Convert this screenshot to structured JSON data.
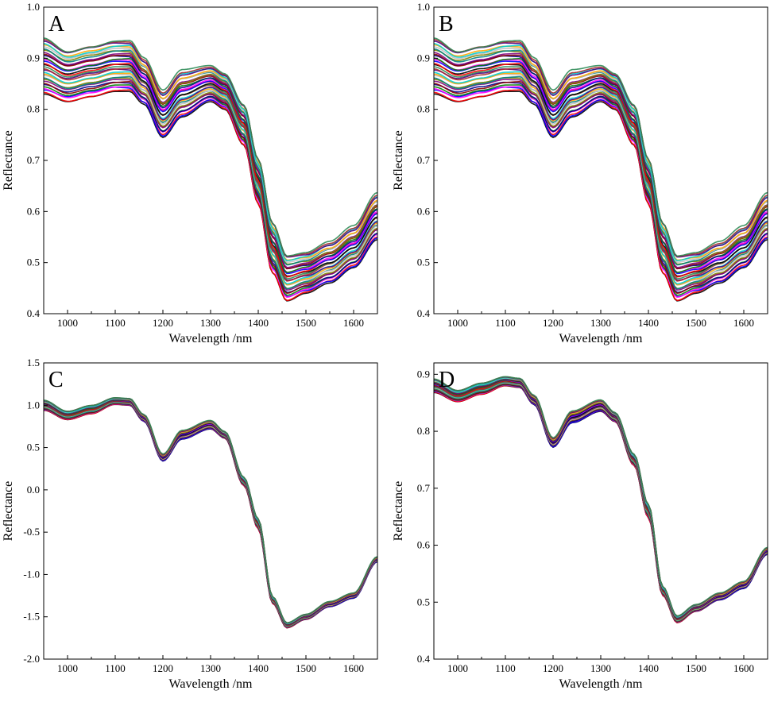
{
  "chart_data": [
    {
      "type": "line",
      "panel_label": "A",
      "xlabel": "Wavelength /nm",
      "ylabel": "Reflectance",
      "xlim": [
        950,
        1650
      ],
      "ylim": [
        0.4,
        1.0
      ],
      "x_ticks": [
        1000,
        1100,
        1200,
        1300,
        1400,
        1500,
        1600
      ],
      "y_ticks": [
        0.4,
        0.5,
        0.6,
        0.7,
        0.8,
        0.9,
        1.0
      ],
      "y_tick_labels": [
        "0.4",
        "0.5",
        "0.6",
        "0.7",
        "0.8",
        "0.9",
        "1.0"
      ],
      "x": [
        950,
        1000,
        1050,
        1100,
        1130,
        1160,
        1200,
        1240,
        1300,
        1330,
        1370,
        1400,
        1430,
        1460,
        1500,
        1550,
        1600,
        1650
      ],
      "center": [
        0.885,
        0.865,
        0.875,
        0.885,
        0.885,
        0.855,
        0.79,
        0.83,
        0.85,
        0.835,
        0.77,
        0.66,
        0.53,
        0.47,
        0.48,
        0.5,
        0.53,
        0.59
      ],
      "spread": [
        0.055,
        0.05,
        0.05,
        0.05,
        0.05,
        0.045,
        0.045,
        0.045,
        0.035,
        0.035,
        0.04,
        0.045,
        0.05,
        0.045,
        0.04,
        0.04,
        0.04,
        0.045
      ],
      "series_count": 32
    },
    {
      "type": "line",
      "panel_label": "B",
      "xlabel": "Wavelength /nm",
      "ylabel": "Reflectance",
      "xlim": [
        950,
        1650
      ],
      "ylim": [
        0.4,
        1.0
      ],
      "x_ticks": [
        1000,
        1100,
        1200,
        1300,
        1400,
        1500,
        1600
      ],
      "y_ticks": [
        0.4,
        0.5,
        0.6,
        0.7,
        0.8,
        0.9,
        1.0
      ],
      "y_tick_labels": [
        "0.4",
        "0.5",
        "0.6",
        "0.7",
        "0.8",
        "0.9",
        "1.0"
      ],
      "x": [
        950,
        1000,
        1050,
        1100,
        1130,
        1160,
        1200,
        1240,
        1300,
        1330,
        1370,
        1400,
        1430,
        1460,
        1500,
        1550,
        1600,
        1650
      ],
      "center": [
        0.885,
        0.865,
        0.875,
        0.885,
        0.885,
        0.855,
        0.79,
        0.83,
        0.85,
        0.835,
        0.77,
        0.66,
        0.53,
        0.47,
        0.48,
        0.5,
        0.53,
        0.59
      ],
      "spread": [
        0.055,
        0.05,
        0.05,
        0.05,
        0.05,
        0.045,
        0.045,
        0.045,
        0.035,
        0.035,
        0.04,
        0.045,
        0.05,
        0.045,
        0.04,
        0.04,
        0.04,
        0.045
      ],
      "series_count": 32
    },
    {
      "type": "line",
      "panel_label": "C",
      "xlabel": "Wavelength /nm",
      "ylabel": "Reflectance",
      "xlim": [
        950,
        1650
      ],
      "ylim": [
        -2.0,
        1.5
      ],
      "x_ticks": [
        1000,
        1100,
        1200,
        1300,
        1400,
        1500,
        1600
      ],
      "y_ticks": [
        -2.0,
        -1.5,
        -1.0,
        -0.5,
        0.0,
        0.5,
        1.0,
        1.5
      ],
      "y_tick_labels": [
        "-2.0",
        "-1.5",
        "-1.0",
        "-0.5",
        "0.0",
        "0.5",
        "1.0",
        "1.5"
      ],
      "x": [
        950,
        1000,
        1050,
        1100,
        1130,
        1160,
        1200,
        1240,
        1300,
        1330,
        1370,
        1400,
        1430,
        1460,
        1500,
        1550,
        1600,
        1650
      ],
      "center": [
        1.0,
        0.88,
        0.95,
        1.05,
        1.04,
        0.85,
        0.38,
        0.65,
        0.77,
        0.65,
        0.1,
        -0.4,
        -1.3,
        -1.6,
        -1.5,
        -1.35,
        -1.25,
        -0.82
      ],
      "spread": [
        0.06,
        0.05,
        0.05,
        0.04,
        0.04,
        0.04,
        0.04,
        0.05,
        0.05,
        0.04,
        0.05,
        0.06,
        0.04,
        0.03,
        0.03,
        0.03,
        0.03,
        0.03
      ],
      "series_count": 32
    },
    {
      "type": "line",
      "panel_label": "D",
      "xlabel": "Wavelength /nm",
      "ylabel": "Reflectance",
      "xlim": [
        950,
        1650
      ],
      "ylim": [
        0.4,
        0.92
      ],
      "x_ticks": [
        1000,
        1100,
        1200,
        1300,
        1400,
        1500,
        1600
      ],
      "y_ticks": [
        0.4,
        0.5,
        0.6,
        0.7,
        0.8,
        0.9
      ],
      "y_tick_labels": [
        "0.4",
        "0.5",
        "0.6",
        "0.7",
        "0.8",
        "0.9"
      ],
      "x": [
        950,
        1000,
        1050,
        1100,
        1130,
        1160,
        1200,
        1240,
        1300,
        1330,
        1370,
        1400,
        1430,
        1460,
        1500,
        1550,
        1600,
        1650
      ],
      "center": [
        0.88,
        0.862,
        0.875,
        0.888,
        0.885,
        0.855,
        0.78,
        0.825,
        0.845,
        0.825,
        0.75,
        0.66,
        0.52,
        0.47,
        0.49,
        0.51,
        0.53,
        0.59
      ],
      "spread": [
        0.012,
        0.01,
        0.01,
        0.008,
        0.008,
        0.008,
        0.008,
        0.01,
        0.01,
        0.008,
        0.01,
        0.012,
        0.008,
        0.006,
        0.006,
        0.006,
        0.006,
        0.006
      ],
      "series_count": 32
    }
  ],
  "palette": [
    "#000000",
    "#ff0000",
    "#0000ff",
    "#ff00ff",
    "#008000",
    "#00008b",
    "#8b0000",
    "#800080",
    "#808000",
    "#008080",
    "#c0c0c0",
    "#ffa500",
    "#00ced1",
    "#4b0082",
    "#a52a2a",
    "#2e8b57"
  ]
}
